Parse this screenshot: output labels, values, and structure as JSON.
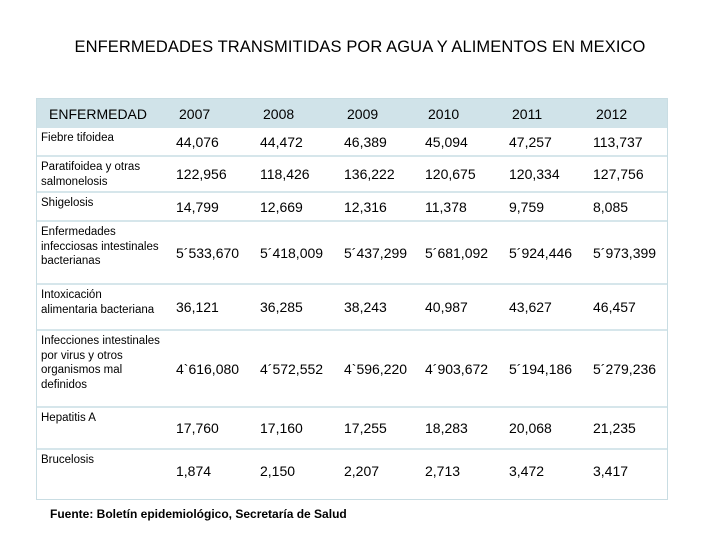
{
  "title": "ENFERMEDADES TRANSMITIDAS POR AGUA Y ALIMENTOS EN MEXICO",
  "table": {
    "header": [
      "ENFERMEDAD",
      "2007",
      "2008",
      "2009",
      "2010",
      "2011",
      "2012"
    ],
    "rows": [
      {
        "name": "Fiebre tifoidea",
        "values": [
          "44,076",
          "44,472",
          "46,389",
          "45,094",
          "47,257",
          "113,737"
        ]
      },
      {
        "name": "Paratifoidea y otras salmonelosis",
        "values": [
          "122,956",
          "118,426",
          "136,222",
          "120,675",
          "120,334",
          "127,756"
        ]
      },
      {
        "name": "Shigelosis",
        "values": [
          "14,799",
          "12,669",
          "12,316",
          "11,378",
          "9,759",
          "8,085"
        ]
      },
      {
        "name": "Enfermedades infecciosas intestinales bacterianas",
        "values": [
          "5´533,670",
          "5´418,009",
          "5´437,299",
          "5´681,092",
          "5´924,446",
          "5´973,399"
        ]
      },
      {
        "name": "Intoxicación alimentaria bacteriana",
        "values": [
          "36,121",
          "36,285",
          "38,243",
          "40,987",
          "43,627",
          "46,457"
        ]
      },
      {
        "name": "Infecciones intestinales por virus y otros organismos mal definidos",
        "values": [
          "4`616,080",
          "4´572,552",
          "4`596,220",
          "4´903,672",
          "5´194,186",
          "5´279,236"
        ]
      },
      {
        "name": "Hepatitis A",
        "values": [
          "17,760",
          "17,160",
          "17,255",
          "18,283",
          "20,068",
          "21,235"
        ]
      },
      {
        "name": "Brucelosis",
        "values": [
          "1,874",
          "2,150",
          "2,207",
          "2,713",
          "3,472",
          "3,417"
        ]
      }
    ]
  },
  "footer": "Fuente: Boletín epidemiológico, Secretaría de Salud"
}
